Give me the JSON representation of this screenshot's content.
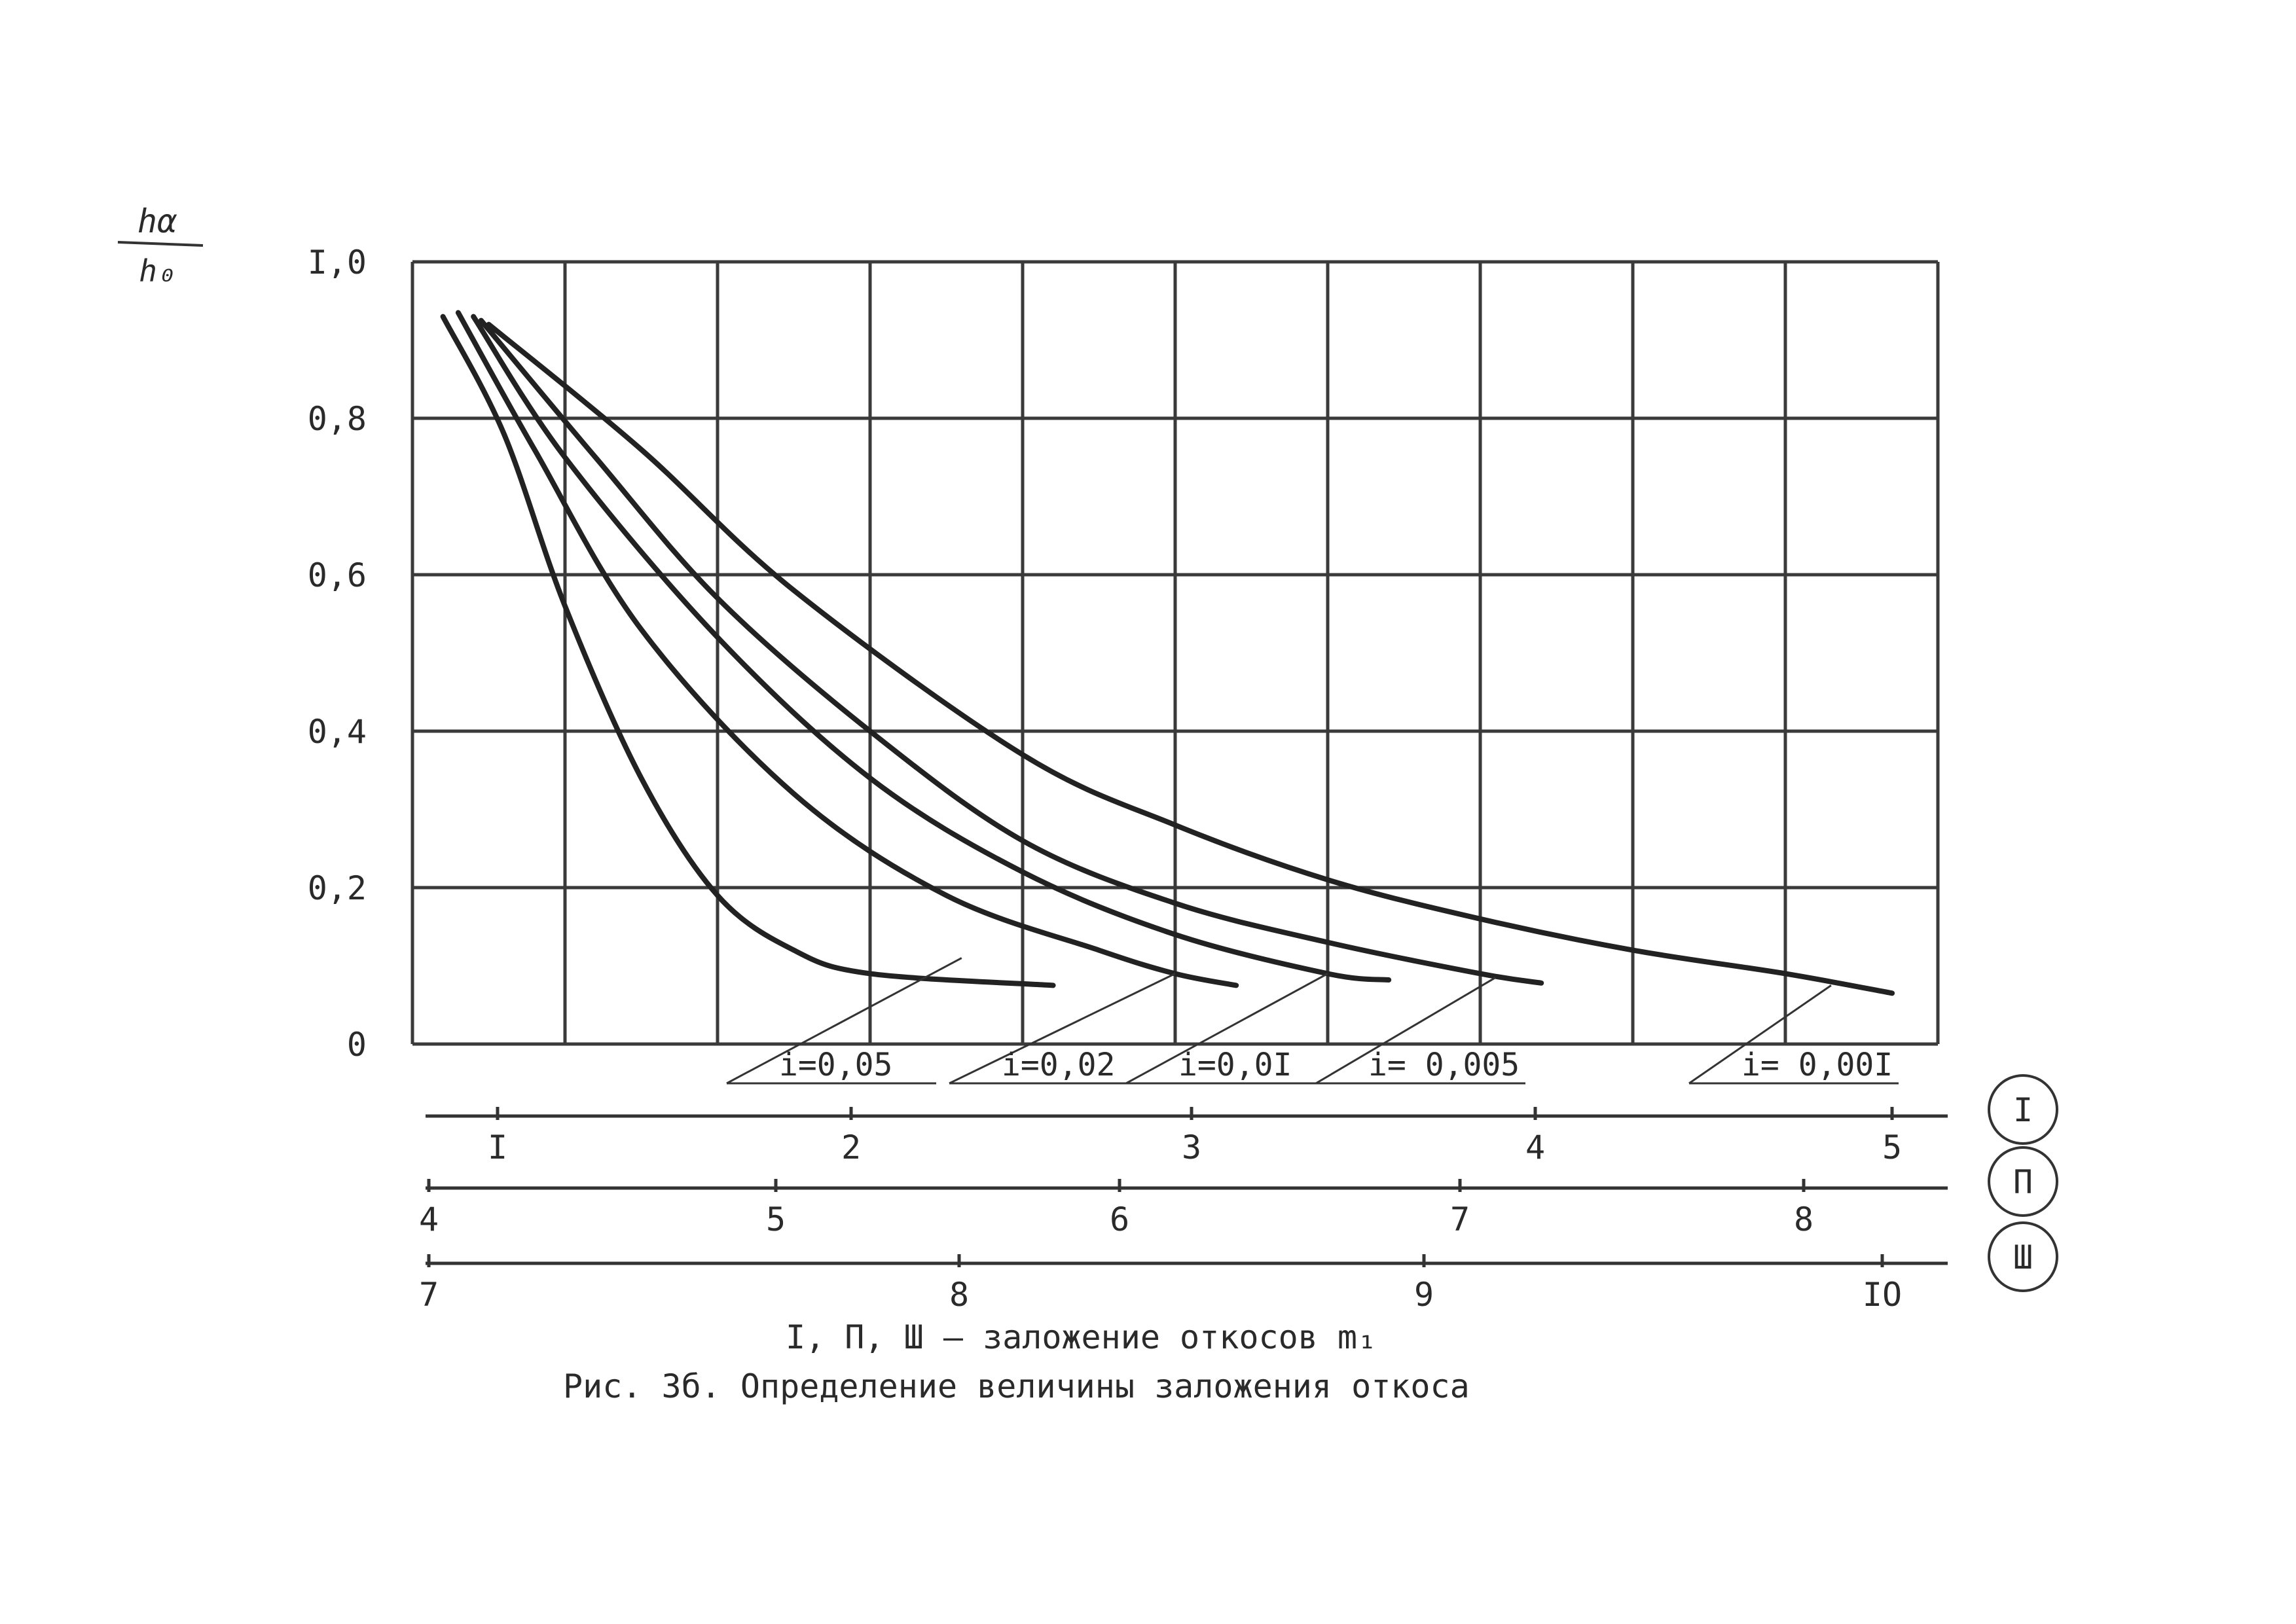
{
  "chart_data": {
    "type": "line",
    "title": "",
    "ylabel": "hα / h₀",
    "ylabel_num": "hα",
    "ylabel_den": "h₀",
    "ylim": [
      0,
      1.0
    ],
    "xlim": [
      0,
      10
    ],
    "grid": true,
    "y_ticks": [
      "0",
      "0,2",
      "0,4",
      "0,6",
      "0,8",
      "I,0"
    ],
    "scales": [
      {
        "name": "I",
        "ticks": [
          "I",
          "2",
          "3",
          "4",
          "5"
        ]
      },
      {
        "name": "П",
        "ticks": [
          "4",
          "5",
          "6",
          "7",
          "8"
        ]
      },
      {
        "name": "Ш",
        "ticks": [
          "7",
          "8",
          "9",
          "IO"
        ]
      }
    ],
    "series": [
      {
        "name": "i=0,05",
        "points": [
          [
            0.2,
            0.93
          ],
          [
            0.6,
            0.78
          ],
          [
            1.0,
            0.56
          ],
          [
            1.5,
            0.34
          ],
          [
            2.0,
            0.19
          ],
          [
            2.5,
            0.12
          ],
          [
            3.0,
            0.09
          ],
          [
            4.2,
            0.075
          ]
        ]
      },
      {
        "name": "i=0,02",
        "points": [
          [
            0.3,
            0.935
          ],
          [
            0.8,
            0.76
          ],
          [
            1.5,
            0.53
          ],
          [
            2.5,
            0.32
          ],
          [
            3.5,
            0.19
          ],
          [
            4.5,
            0.12
          ],
          [
            5.0,
            0.09
          ],
          [
            5.4,
            0.075
          ]
        ]
      },
      {
        "name": "i=0,01",
        "points": [
          [
            0.4,
            0.93
          ],
          [
            1.0,
            0.75
          ],
          [
            2.0,
            0.52
          ],
          [
            3.0,
            0.34
          ],
          [
            4.0,
            0.22
          ],
          [
            5.0,
            0.14
          ],
          [
            6.0,
            0.09
          ],
          [
            6.4,
            0.082
          ]
        ]
      },
      {
        "name": "i= 0,005",
        "points": [
          [
            0.45,
            0.925
          ],
          [
            1.2,
            0.75
          ],
          [
            2.0,
            0.57
          ],
          [
            3.0,
            0.4
          ],
          [
            4.0,
            0.26
          ],
          [
            5.0,
            0.18
          ],
          [
            6.0,
            0.13
          ],
          [
            7.0,
            0.09
          ],
          [
            7.4,
            0.078
          ]
        ]
      },
      {
        "name": "i= 0,001",
        "points": [
          [
            0.5,
            0.92
          ],
          [
            1.5,
            0.76
          ],
          [
            2.5,
            0.58
          ],
          [
            4.0,
            0.37
          ],
          [
            5.0,
            0.28
          ],
          [
            6.0,
            0.21
          ],
          [
            7.0,
            0.16
          ],
          [
            8.0,
            0.12
          ],
          [
            9.0,
            0.09
          ],
          [
            9.7,
            0.065
          ]
        ]
      }
    ],
    "curve_labels": [
      {
        "text": "i=0,05",
        "anchor": [
          3.6,
          0.11
        ]
      },
      {
        "text": "i=0,02",
        "anchor": [
          5.0,
          0.09
        ]
      },
      {
        "text": "i=0,0I",
        "anchor": [
          6.0,
          0.09
        ]
      },
      {
        "text": "i= 0,005",
        "anchor": [
          7.1,
          0.085
        ]
      },
      {
        "text": "i= 0,00I",
        "anchor": [
          9.3,
          0.075
        ]
      }
    ]
  },
  "caption": {
    "line1": "I, П, Ш – заложение откосов m₁",
    "line2": "Рис. 3б. Определение величины заложения откоса"
  }
}
